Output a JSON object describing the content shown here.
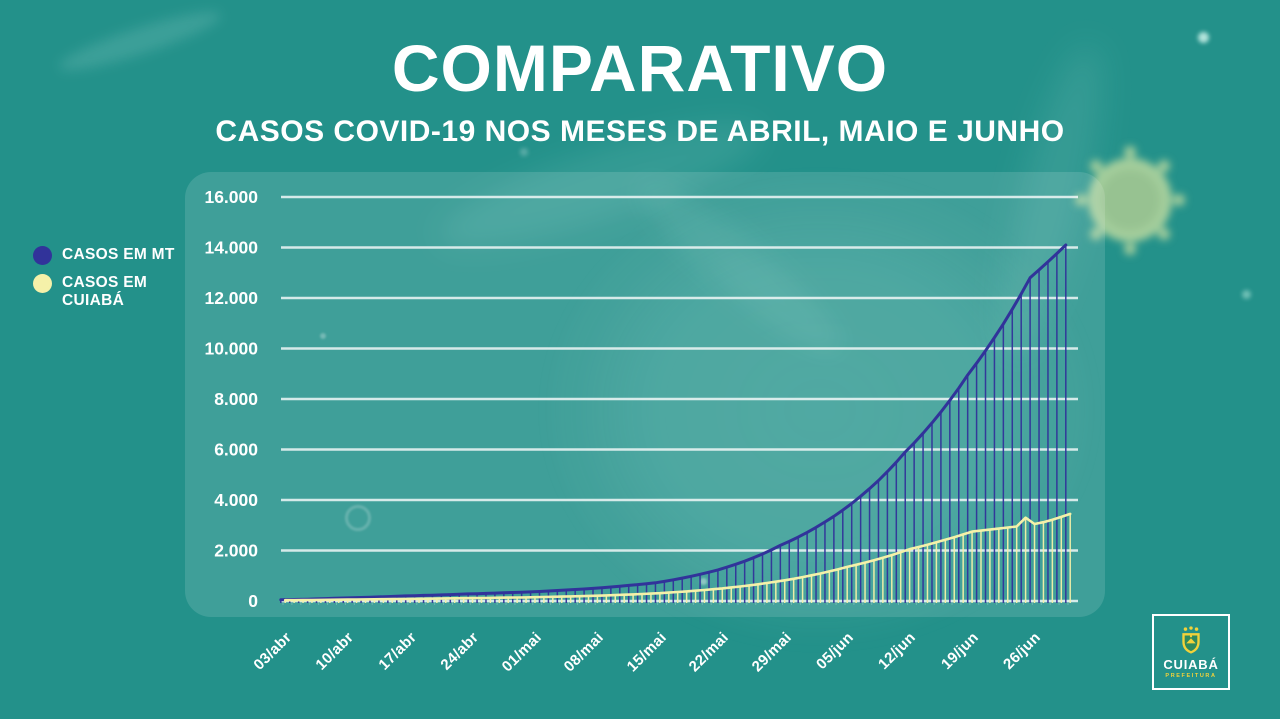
{
  "title": "COMPARATIVO",
  "subtitle": "CASOS COVID-19 NOS MESES DE ABRIL, MAIO E JUNHO",
  "legend": {
    "items": [
      {
        "label": "CASOS EM MT",
        "color": "#31339a"
      },
      {
        "label": "CASOS EM CUIABÁ",
        "color": "#f5f1a9"
      }
    ]
  },
  "logo": {
    "city": "CUIABÁ",
    "org": "PREFEITURA"
  },
  "chart_data": {
    "type": "line",
    "variant": "daily lines with vertical drop bars to zero",
    "title": "",
    "xlabel": "",
    "ylabel": "",
    "grid": true,
    "legend_position": "left",
    "ylim": [
      0,
      16000
    ],
    "y_ticks": [
      0,
      2000,
      4000,
      6000,
      8000,
      10000,
      12000,
      14000,
      16000
    ],
    "y_tick_labels": [
      "0",
      "2.000",
      "4.000",
      "6.000",
      "8.000",
      "10.000",
      "12.000",
      "14.000",
      "16.000"
    ],
    "x_frequency": "daily",
    "x_range": "03/abr – 30/jun",
    "x_tick_labels": [
      "03/abr",
      "10/abr",
      "17/abr",
      "24/abr",
      "01/mai",
      "08/mai",
      "15/mai",
      "22/mai",
      "29/mai",
      "05/jun",
      "12/jun",
      "19/jun",
      "26/jun"
    ],
    "x_tick_day_indices": [
      0,
      7,
      14,
      21,
      28,
      35,
      42,
      49,
      56,
      63,
      70,
      77,
      84
    ],
    "series": [
      {
        "name": "CASOS EM MT",
        "color": "#31339a",
        "line_width": 3,
        "values": [
          50,
          57,
          64,
          73,
          83,
          94,
          106,
          120,
          129,
          139,
          149,
          161,
          173,
          186,
          200,
          210,
          220,
          231,
          242,
          254,
          267,
          280,
          290,
          301,
          312,
          323,
          335,
          347,
          360,
          377,
          395,
          414,
          434,
          455,
          477,
          500,
          527,
          555,
          585,
          616,
          649,
          683,
          720,
          777,
          839,
          906,
          978,
          1056,
          1140,
          1230,
          1337,
          1452,
          1578,
          1715,
          1863,
          2025,
          2200,
          2360,
          2532,
          2717,
          2915,
          3127,
          3355,
          3600,
          3863,
          4146,
          4449,
          4774,
          5123,
          5498,
          5900,
          6262,
          6646,
          7053,
          7486,
          7945,
          8432,
          8950,
          9419,
          9913,
          10433,
          10980,
          11555,
          12161,
          12800,
          13113,
          13434,
          13763,
          14100
        ]
      },
      {
        "name": "CASOS EM CUIABÁ",
        "color": "#f5f1a9",
        "line_width": 2.6,
        "values": [
          30,
          33,
          36,
          39,
          42,
          46,
          50,
          55,
          59,
          62,
          66,
          71,
          75,
          80,
          85,
          89,
          93,
          97,
          101,
          105,
          110,
          115,
          119,
          124,
          129,
          134,
          139,
          144,
          150,
          157,
          165,
          173,
          182,
          191,
          200,
          210,
          222,
          235,
          248,
          262,
          277,
          293,
          310,
          332,
          355,
          380,
          407,
          436,
          467,
          500,
          537,
          576,
          618,
          663,
          712,
          764,
          820,
          881,
          946,
          1016,
          1091,
          1171,
          1257,
          1350,
          1433,
          1521,
          1615,
          1714,
          1819,
          1931,
          2050,
          2138,
          2229,
          2325,
          2424,
          2528,
          2637,
          2750,
          2789,
          2828,
          2868,
          2909,
          2950,
          3300,
          3050,
          3120,
          3220,
          3330,
          3450
        ]
      }
    ]
  }
}
